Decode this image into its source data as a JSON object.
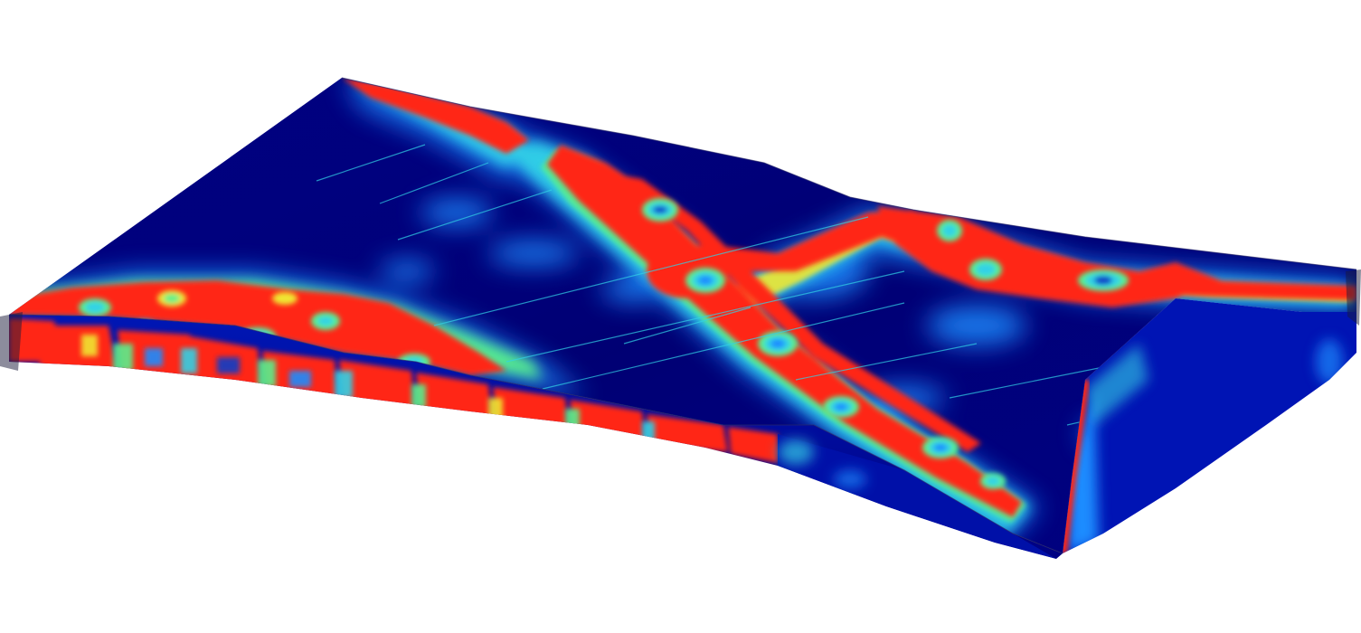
{
  "view": {
    "background": "#ffffff",
    "object": "deformed-sandwich-panel",
    "rendering": "contour-plot"
  },
  "colormap": {
    "low": "#00007f",
    "low_mid": "#0a3cc8",
    "mid_low": "#1e8cff",
    "mid": "#32d2e6",
    "mid_high": "#5af08c",
    "high_low": "#f0e632",
    "high": "#ff2814",
    "peak": "#dc0000"
  },
  "colors": {
    "top_face_base": "#00007f",
    "side_face_base": "#000a9a",
    "edge_line": "#3c3c3c"
  }
}
